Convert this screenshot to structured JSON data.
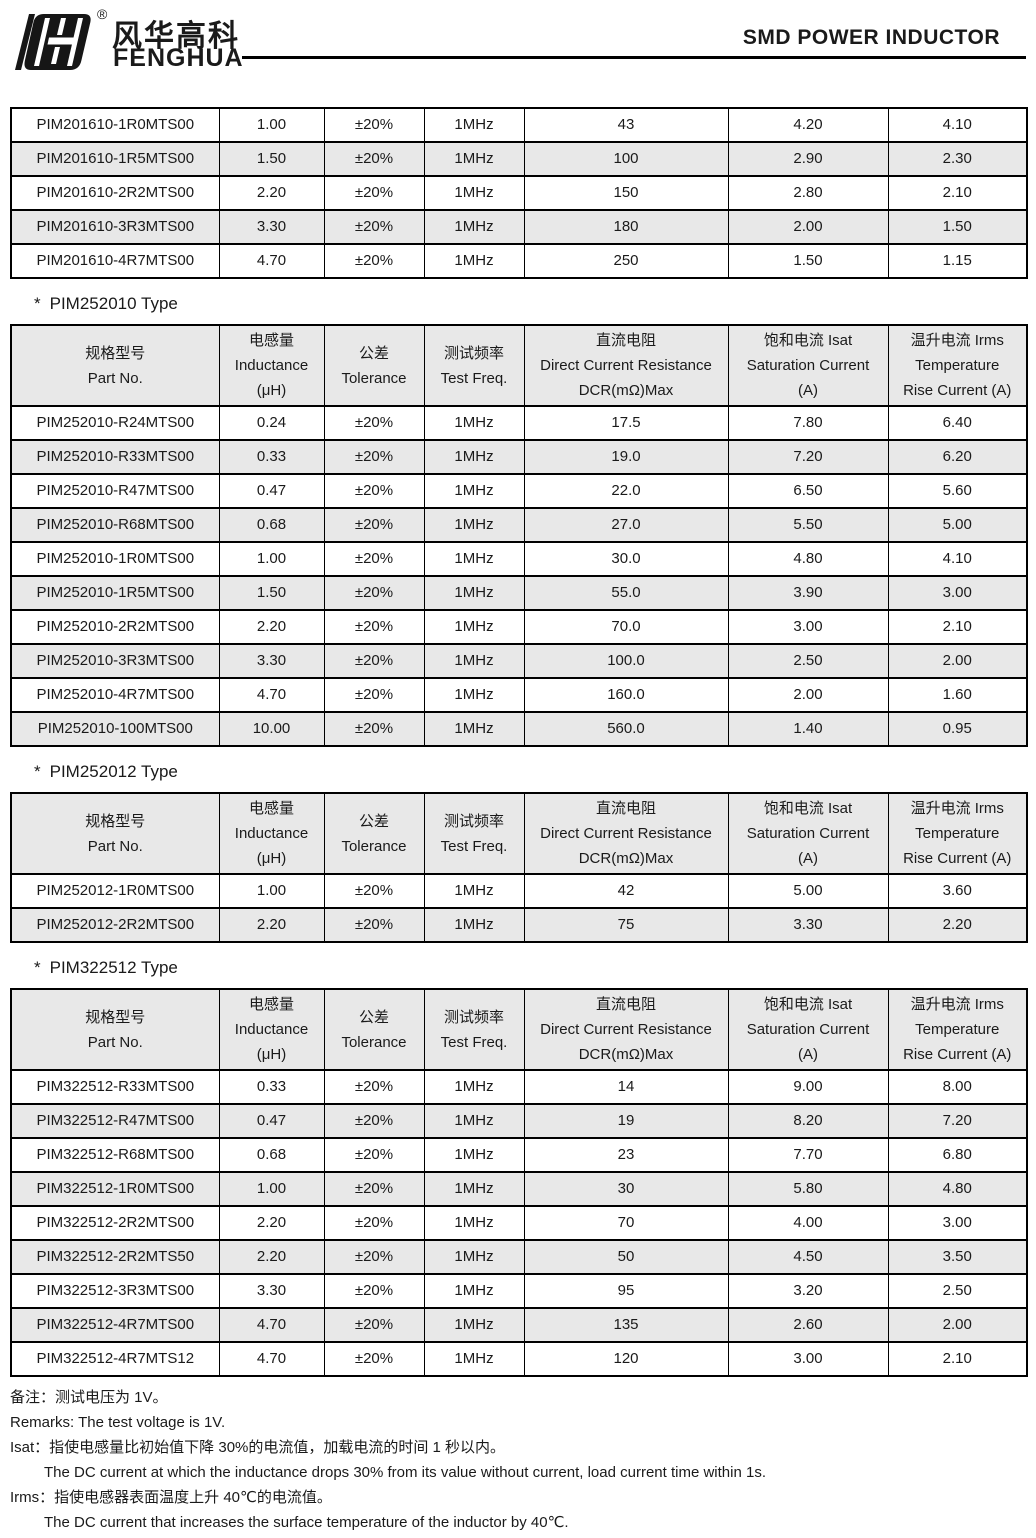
{
  "brand": {
    "registered": "®",
    "name_cn": "风华高科",
    "name_en": "FENGHUA"
  },
  "doc_title": "SMD POWER INDUCTOR",
  "section_marker": "*",
  "column_headers": [
    [
      "规格型号",
      "Part No."
    ],
    [
      "电感量",
      "Inductance",
      "(μH)"
    ],
    [
      "公差",
      "Tolerance"
    ],
    [
      "测试频率",
      "Test Freq."
    ],
    [
      "直流电阻",
      "Direct Current Resistance",
      "DCR(mΩ)Max"
    ],
    [
      "饱和电流 Isat",
      "Saturation Current",
      "(A)"
    ],
    [
      "温升电流 Irms",
      "Temperature",
      "Rise Current (A)"
    ]
  ],
  "sections": [
    {
      "title": "",
      "show_header": false,
      "rows": [
        [
          "PIM201610-1R0MTS00",
          "1.00",
          "±20%",
          "1MHz",
          "43",
          "4.20",
          "4.10"
        ],
        [
          "PIM201610-1R5MTS00",
          "1.50",
          "±20%",
          "1MHz",
          "100",
          "2.90",
          "2.30"
        ],
        [
          "PIM201610-2R2MTS00",
          "2.20",
          "±20%",
          "1MHz",
          "150",
          "2.80",
          "2.10"
        ],
        [
          "PIM201610-3R3MTS00",
          "3.30",
          "±20%",
          "1MHz",
          "180",
          "2.00",
          "1.50"
        ],
        [
          "PIM201610-4R7MTS00",
          "4.70",
          "±20%",
          "1MHz",
          "250",
          "1.50",
          "1.15"
        ]
      ]
    },
    {
      "title": "PIM252010 Type",
      "show_header": true,
      "rows": [
        [
          "PIM252010-R24MTS00",
          "0.24",
          "±20%",
          "1MHz",
          "17.5",
          "7.80",
          "6.40"
        ],
        [
          "PIM252010-R33MTS00",
          "0.33",
          "±20%",
          "1MHz",
          "19.0",
          "7.20",
          "6.20"
        ],
        [
          "PIM252010-R47MTS00",
          "0.47",
          "±20%",
          "1MHz",
          "22.0",
          "6.50",
          "5.60"
        ],
        [
          "PIM252010-R68MTS00",
          "0.68",
          "±20%",
          "1MHz",
          "27.0",
          "5.50",
          "5.00"
        ],
        [
          "PIM252010-1R0MTS00",
          "1.00",
          "±20%",
          "1MHz",
          "30.0",
          "4.80",
          "4.10"
        ],
        [
          "PIM252010-1R5MTS00",
          "1.50",
          "±20%",
          "1MHz",
          "55.0",
          "3.90",
          "3.00"
        ],
        [
          "PIM252010-2R2MTS00",
          "2.20",
          "±20%",
          "1MHz",
          "70.0",
          "3.00",
          "2.10"
        ],
        [
          "PIM252010-3R3MTS00",
          "3.30",
          "±20%",
          "1MHz",
          "100.0",
          "2.50",
          "2.00"
        ],
        [
          "PIM252010-4R7MTS00",
          "4.70",
          "±20%",
          "1MHz",
          "160.0",
          "2.00",
          "1.60"
        ],
        [
          "PIM252010-100MTS00",
          "10.00",
          "±20%",
          "1MHz",
          "560.0",
          "1.40",
          "0.95"
        ]
      ]
    },
    {
      "title": "PIM252012 Type",
      "show_header": true,
      "rows": [
        [
          "PIM252012-1R0MTS00",
          "1.00",
          "±20%",
          "1MHz",
          "42",
          "5.00",
          "3.60"
        ],
        [
          "PIM252012-2R2MTS00",
          "2.20",
          "±20%",
          "1MHz",
          "75",
          "3.30",
          "2.20"
        ]
      ]
    },
    {
      "title": "PIM322512 Type",
      "show_header": true,
      "rows": [
        [
          "PIM322512-R33MTS00",
          "0.33",
          "±20%",
          "1MHz",
          "14",
          "9.00",
          "8.00"
        ],
        [
          "PIM322512-R47MTS00",
          "0.47",
          "±20%",
          "1MHz",
          "19",
          "8.20",
          "7.20"
        ],
        [
          "PIM322512-R68MTS00",
          "0.68",
          "±20%",
          "1MHz",
          "23",
          "7.70",
          "6.80"
        ],
        [
          "PIM322512-1R0MTS00",
          "1.00",
          "±20%",
          "1MHz",
          "30",
          "5.80",
          "4.80"
        ],
        [
          "PIM322512-2R2MTS00",
          "2.20",
          "±20%",
          "1MHz",
          "70",
          "4.00",
          "3.00"
        ],
        [
          "PIM322512-2R2MTS50",
          "2.20",
          "±20%",
          "1MHz",
          "50",
          "4.50",
          "3.50"
        ],
        [
          "PIM322512-3R3MTS00",
          "3.30",
          "±20%",
          "1MHz",
          "95",
          "3.20",
          "2.50"
        ],
        [
          "PIM322512-4R7MTS00",
          "4.70",
          "±20%",
          "1MHz",
          "135",
          "2.60",
          "2.00"
        ],
        [
          "PIM322512-4R7MTS12",
          "4.70",
          "±20%",
          "1MHz",
          "120",
          "3.00",
          "2.10"
        ]
      ]
    }
  ],
  "notes": [
    {
      "text": "备注：测试电压为 1V。",
      "indent": false
    },
    {
      "text": "Remarks: The test voltage is 1V.",
      "indent": false
    },
    {
      "text": "Isat：指使电感量比初始值下降 30%的电流值，加载电流的时间 1 秒以内。",
      "indent": false
    },
    {
      "text": "The DC current at which the inductance drops 30% from its value without current, load current time within 1s.",
      "indent": true
    },
    {
      "text": "Irms：指使电感器表面温度上升 40℃的电流值。",
      "indent": false
    },
    {
      "text": "The DC current that increases the surface temperature of the inductor by 40℃.",
      "indent": true
    }
  ],
  "colors": {
    "row_alt_bg": "#e8e8e8",
    "header_bg": "#e8e8e8",
    "border": "#000000",
    "text": "#1a1a1a"
  }
}
